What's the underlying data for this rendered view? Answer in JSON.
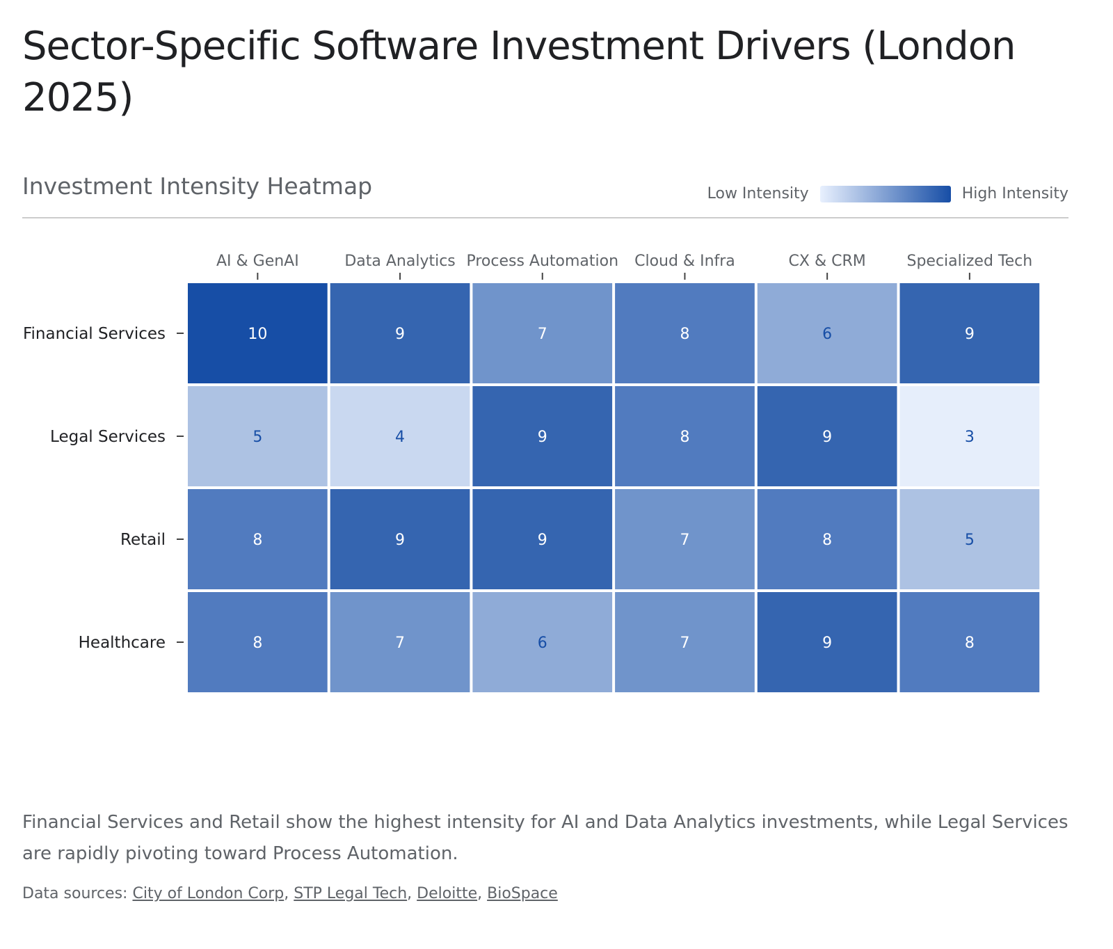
{
  "title": "Sector-Specific Software Investment Drivers (London 2025)",
  "chart_data": {
    "type": "heatmap",
    "title": "Investment Intensity Heatmap",
    "columns": [
      "AI & GenAI",
      "Data Analytics",
      "Process Automation",
      "Cloud & Infra",
      "CX & CRM",
      "Specialized Tech"
    ],
    "rows": [
      "Financial Services",
      "Legal Services",
      "Retail",
      "Healthcare"
    ],
    "values": [
      [
        10,
        9,
        7,
        8,
        6,
        9
      ],
      [
        5,
        4,
        9,
        8,
        9,
        3
      ],
      [
        8,
        9,
        9,
        7,
        8,
        5
      ],
      [
        8,
        7,
        6,
        7,
        9,
        8
      ]
    ],
    "legend": {
      "low_label": "Low Intensity",
      "high_label": "High Intensity",
      "low_color": "#e8f0fe",
      "high_color": "#174ea6",
      "placement": "top-right"
    },
    "colors": {
      "3": "#e6eefb",
      "4": "#c9d8f0",
      "5": "#adc2e3",
      "6": "#8fabd7",
      "7": "#7094cb",
      "8": "#517bbf",
      "9": "#3565b0",
      "10": "#174ea6"
    }
  },
  "description": "Financial Services and Retail show the highest intensity for AI and Data Analytics investments, while Legal Services are rapidly pivoting toward Process Automation.",
  "sources": {
    "label": "Data sources:",
    "links": [
      "City of London Corp",
      "STP Legal Tech",
      "Deloitte",
      "BioSpace"
    ]
  }
}
